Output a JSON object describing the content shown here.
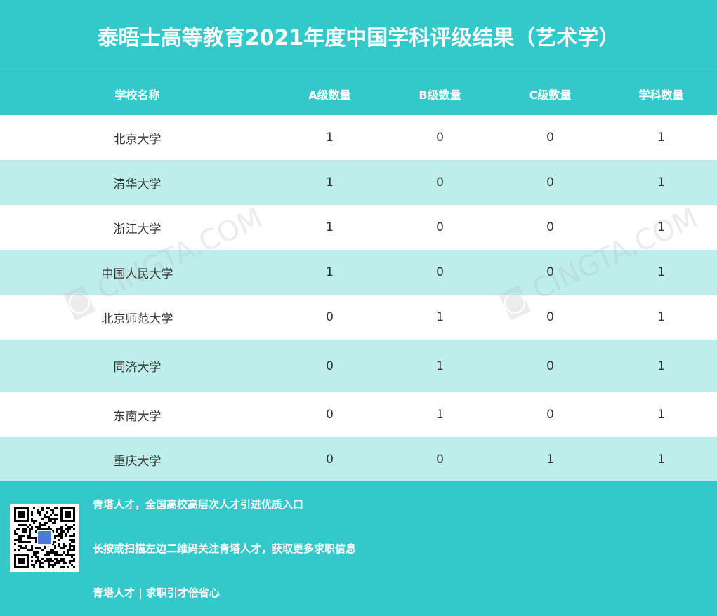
{
  "title": "泰晤士高等教育2021年度中国学科评级结果（艺术学）",
  "headers": [
    "学校名称",
    "A级数量",
    "B级数量",
    "C级数量",
    "学科数量"
  ],
  "rows": [
    [
      "北京大学",
      "1",
      "0",
      "0",
      "1"
    ],
    [
      "清华大学",
      "1",
      "0",
      "0",
      "1"
    ],
    [
      "浙江大学",
      "1",
      "0",
      "0",
      "1"
    ],
    [
      "中国人民大学",
      "1",
      "0",
      "0",
      "1"
    ],
    [
      "北京师范大学",
      "0",
      "1",
      "0",
      "1"
    ],
    [
      "同济大学",
      "0",
      "1",
      "0",
      "1"
    ],
    [
      "东南大学",
      "0",
      "1",
      "0",
      "1"
    ],
    [
      "重庆大学",
      "0",
      "0",
      "1",
      "1"
    ]
  ],
  "footer": {
    "line1": "青塔人才，全国高校高层次人才引进优质入口",
    "line2": "长按或扫描左边二维码关注青塔人才，获取更多求职信息",
    "line3": "青塔人才 | 求职引才倍省心"
  },
  "watermark": "青塔 CINGTA.COM",
  "colors": {
    "header": "#33c9cb",
    "alt_row": "#bdeeec",
    "text": "#333333"
  }
}
